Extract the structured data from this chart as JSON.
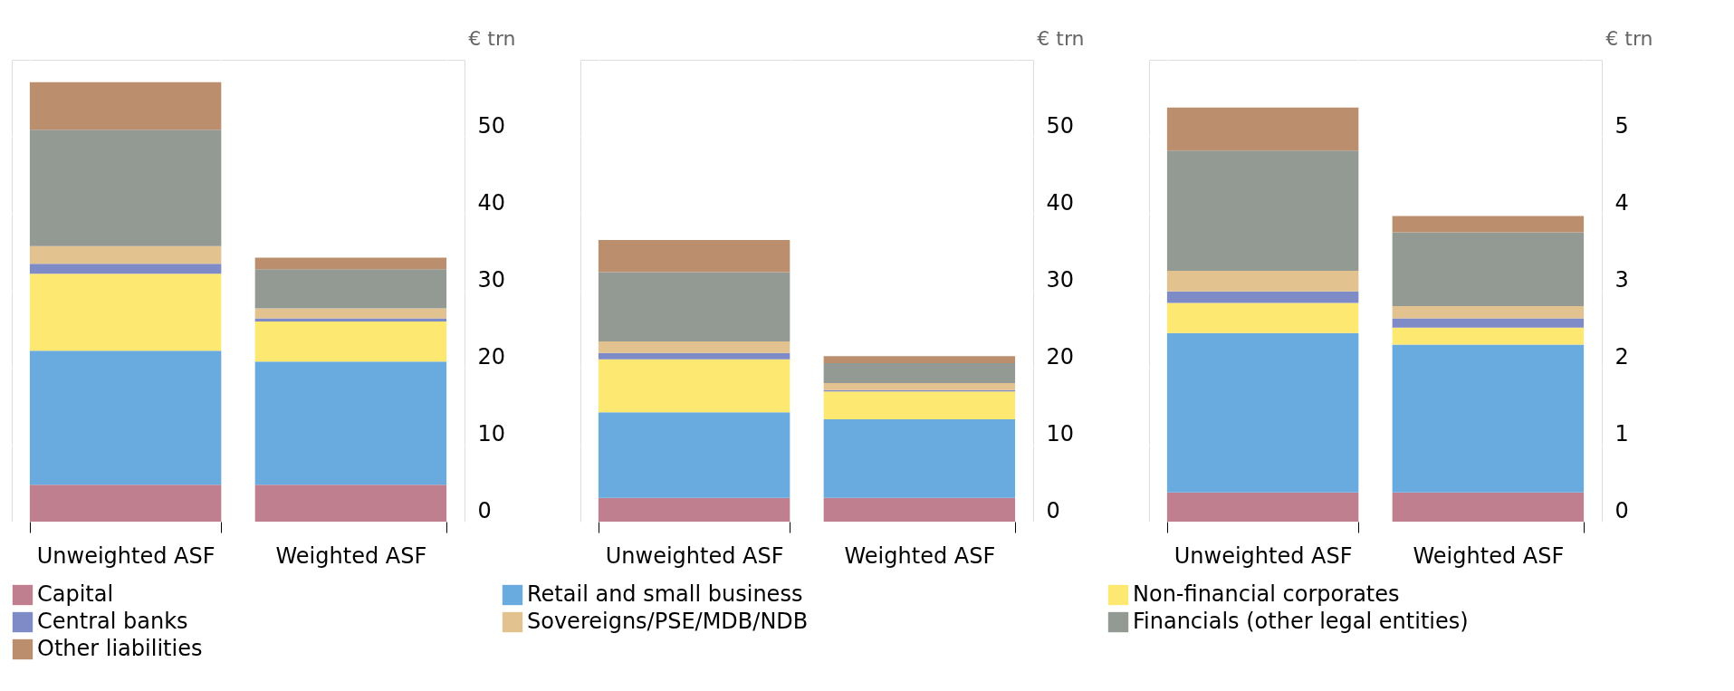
{
  "chart_data": [
    {
      "type": "bar",
      "stacked": true,
      "ylabel": "€ trn",
      "categories": [
        "Unweighted ASF",
        "Weighted ASF"
      ],
      "ylim": [
        0,
        60
      ],
      "yticks": [
        0,
        10,
        20,
        30,
        40,
        50
      ],
      "grid": true,
      "legend": "bottom",
      "series": [
        {
          "name": "Capital",
          "color": "#c07f8f",
          "values": [
            4.8,
            4.8
          ]
        },
        {
          "name": "Retail and small business",
          "color": "#6aabdf",
          "values": [
            17.4,
            16.0
          ]
        },
        {
          "name": "Non-financial corporates",
          "color": "#fde872",
          "values": [
            10.0,
            5.2
          ]
        },
        {
          "name": "Central banks",
          "color": "#7f8bc6",
          "values": [
            1.3,
            0.4
          ]
        },
        {
          "name": "Sovereigns/PSE/MDB/NDB",
          "color": "#e2c28f",
          "values": [
            2.3,
            1.3
          ]
        },
        {
          "name": "Financials (other legal entities)",
          "color": "#939993",
          "values": [
            15.1,
            5.1
          ]
        },
        {
          "name": "Other liabilities",
          "color": "#bb8f6d",
          "values": [
            6.2,
            1.5
          ]
        }
      ]
    },
    {
      "type": "bar",
      "stacked": true,
      "ylabel": "€ trn",
      "categories": [
        "Unweighted ASF",
        "Weighted ASF"
      ],
      "ylim": [
        0,
        60
      ],
      "yticks": [
        0,
        10,
        20,
        30,
        40,
        50
      ],
      "grid": true,
      "legend": "bottom",
      "series": [
        {
          "name": "Capital",
          "color": "#c07f8f",
          "values": [
            3.1,
            3.1
          ]
        },
        {
          "name": "Retail and small business",
          "color": "#6aabdf",
          "values": [
            11.1,
            10.2
          ]
        },
        {
          "name": "Non-financial corporates",
          "color": "#fde872",
          "values": [
            6.9,
            3.6
          ]
        },
        {
          "name": "Central banks",
          "color": "#7f8bc6",
          "values": [
            0.8,
            0.2
          ]
        },
        {
          "name": "Sovereigns/PSE/MDB/NDB",
          "color": "#e2c28f",
          "values": [
            1.5,
            0.9
          ]
        },
        {
          "name": "Financials (other legal entities)",
          "color": "#939993",
          "values": [
            9.0,
            2.6
          ]
        },
        {
          "name": "Other liabilities",
          "color": "#bb8f6d",
          "values": [
            4.2,
            0.9
          ]
        }
      ]
    },
    {
      "type": "bar",
      "stacked": true,
      "ylabel": "€ trn",
      "categories": [
        "Unweighted ASF",
        "Weighted ASF"
      ],
      "ylim": [
        0,
        6
      ],
      "yticks": [
        0,
        1,
        2,
        3,
        4,
        5
      ],
      "grid": true,
      "legend": "bottom",
      "series": [
        {
          "name": "Capital",
          "color": "#c07f8f",
          "values": [
            0.38,
            0.38
          ]
        },
        {
          "name": "Retail and small business",
          "color": "#6aabdf",
          "values": [
            2.07,
            1.92
          ]
        },
        {
          "name": "Non-financial corporates",
          "color": "#fde872",
          "values": [
            0.39,
            0.22
          ]
        },
        {
          "name": "Central banks",
          "color": "#7f8bc6",
          "values": [
            0.15,
            0.12
          ]
        },
        {
          "name": "Sovereigns/PSE/MDB/NDB",
          "color": "#e2c28f",
          "values": [
            0.27,
            0.16
          ]
        },
        {
          "name": "Financials (other legal entities)",
          "color": "#939993",
          "values": [
            1.56,
            0.96
          ]
        },
        {
          "name": "Other liabilities",
          "color": "#bb8f6d",
          "values": [
            0.56,
            0.21
          ]
        }
      ]
    }
  ]
}
